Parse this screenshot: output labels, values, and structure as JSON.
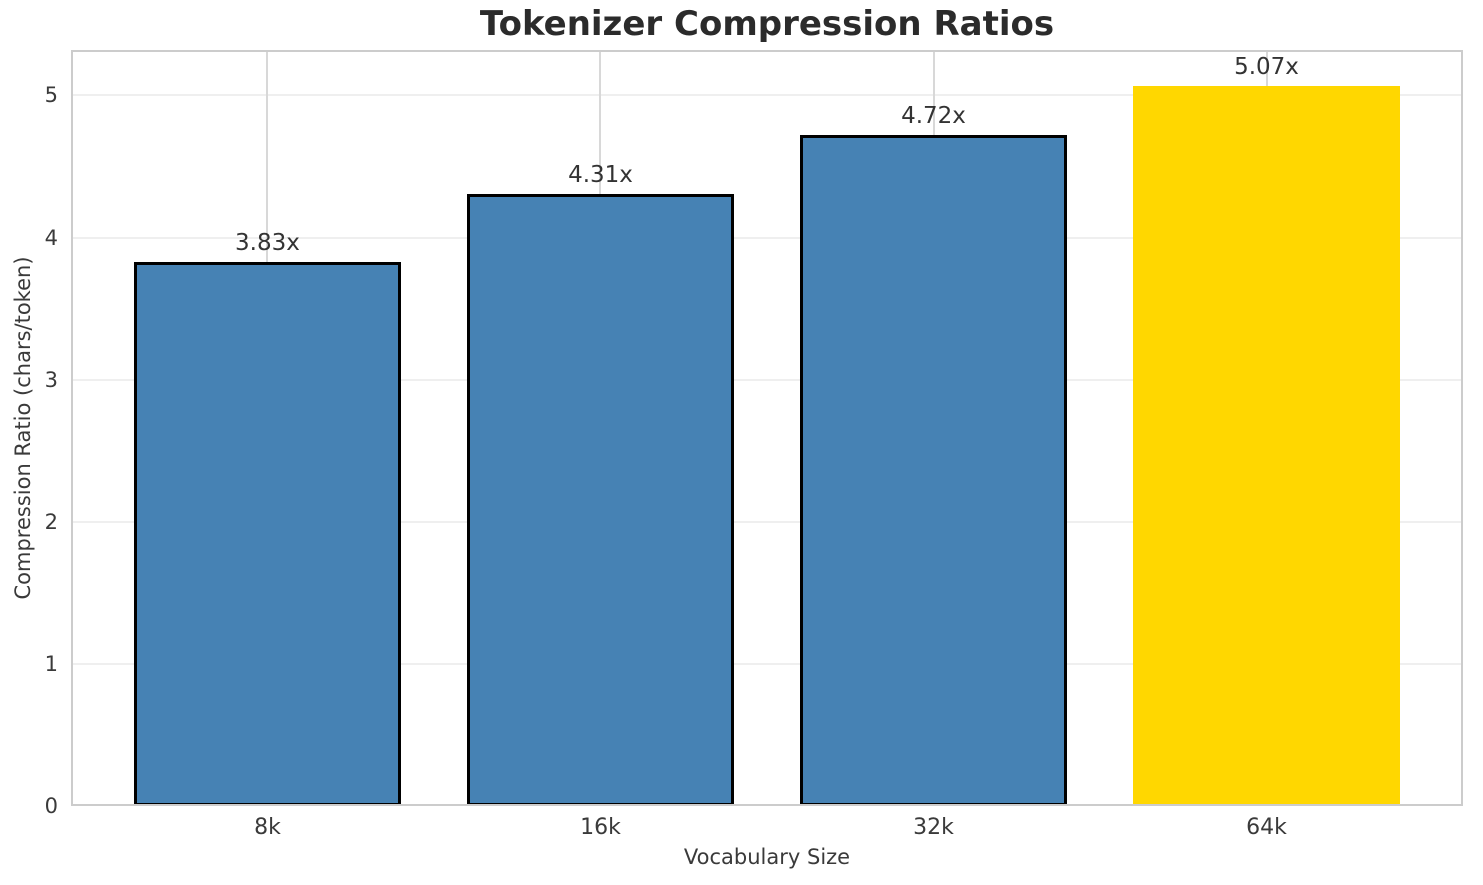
{
  "chart_data": {
    "type": "bar",
    "title": "Tokenizer Compression Ratios",
    "xlabel": "Vocabulary Size",
    "ylabel": "Compression Ratio (chars/token)",
    "categories": [
      "8k",
      "16k",
      "32k",
      "64k"
    ],
    "values": [
      3.83,
      4.31,
      4.72,
      5.07
    ],
    "value_labels": [
      "3.83x",
      "4.31x",
      "4.72x",
      "5.07x"
    ],
    "bar_colors": [
      "#4682b4",
      "#4682b4",
      "#4682b4",
      "#ffd700"
    ],
    "bar_edge_colors": [
      "#000000",
      "#000000",
      "#000000",
      "none"
    ],
    "yticks": [
      0,
      1,
      2,
      3,
      4,
      5
    ],
    "ylim": [
      0,
      5.32
    ],
    "grid": true,
    "legend_position": "none",
    "highlight_category": "64k"
  },
  "colors": {
    "background": "#ffffff",
    "bar_blue": "#4682b4",
    "bar_gold": "#ffd700",
    "bar_edge": "#000000",
    "spine": "#cccccc",
    "gridline_horizontal": "#efefef",
    "gridline_vertical": "#d8d8d8",
    "tick_text": "#3a3a3a",
    "title_text": "#2b2b2b"
  }
}
